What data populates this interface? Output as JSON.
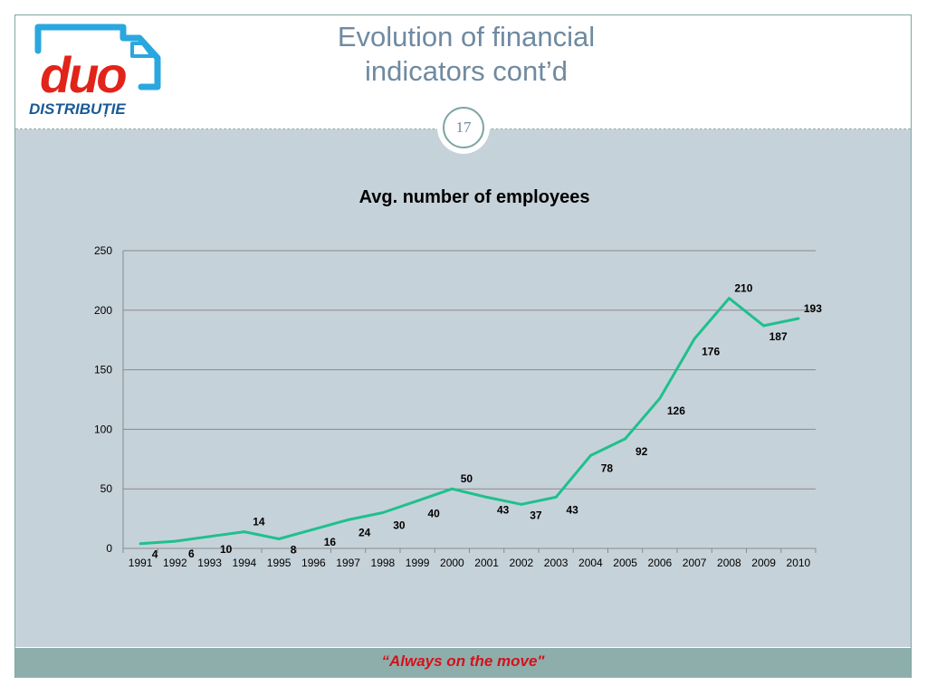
{
  "slide": {
    "title_line1": "Evolution of financial",
    "title_line2": "indicators cont’d",
    "page_number": "17",
    "footer_text": "“Always on the move\"",
    "logo_text": "duo",
    "logo_subtext": "DISTRIBUȚIE",
    "logo_colors": {
      "brand_red": "#e2231a",
      "brand_blue": "#1a5a96",
      "truck_outline": "#2aa7df"
    }
  },
  "chart_data": {
    "type": "line",
    "title": "Avg. number of employees",
    "xlabel": "",
    "ylabel": "",
    "ylim": [
      0,
      250
    ],
    "yticks": [
      0,
      50,
      100,
      150,
      200,
      250
    ],
    "grid": true,
    "legend": "none",
    "line_color": "#1fc08e",
    "categories": [
      "1991",
      "1992",
      "1993",
      "1994",
      "1995",
      "1996",
      "1997",
      "1998",
      "1999",
      "2000",
      "2001",
      "2002",
      "2003",
      "2004",
      "2005",
      "2006",
      "2007",
      "2008",
      "2009",
      "2010"
    ],
    "series": [
      {
        "values": [
          4,
          6,
          10,
          14,
          8,
          16,
          24,
          30,
          40,
          50,
          43,
          37,
          43,
          78,
          92,
          126,
          176,
          210,
          187,
          193
        ]
      }
    ]
  }
}
